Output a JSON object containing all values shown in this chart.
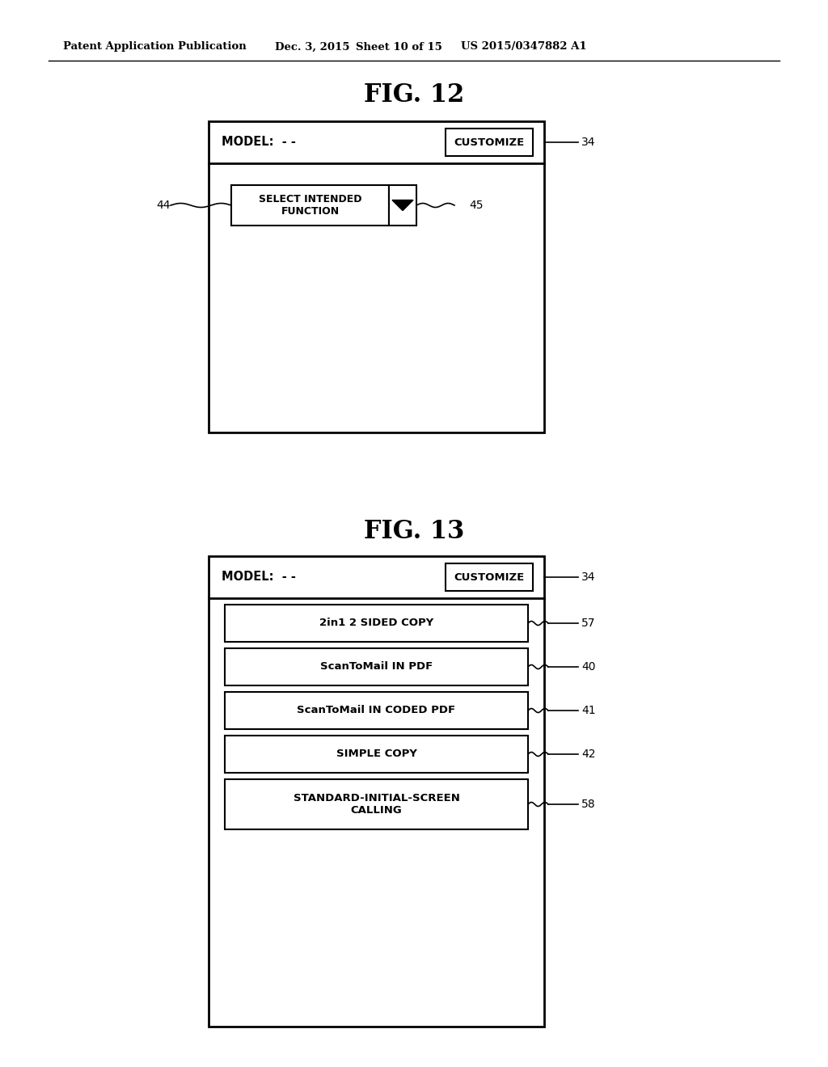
{
  "background_color": "#ffffff",
  "header_text": "Patent Application Publication",
  "header_date": "Dec. 3, 2015",
  "header_sheet": "Sheet 10 of 15",
  "header_patent": "US 2015/0347882 A1",
  "fig12_title": "FIG. 12",
  "fig13_title": "FIG. 13",
  "model_label": "MODEL:  - -",
  "customize_label": "CUSTOMIZE",
  "select_label": "SELECT INTENDED\nFUNCTION",
  "label_34_fig12": "34",
  "label_44": "44",
  "label_45": "45",
  "label_34_fig13": "34",
  "fig13_items": [
    "2in1 2 SIDED COPY",
    "ScanToMail IN PDF",
    "ScanToMail IN CODED PDF",
    "SIMPLE COPY",
    "STANDARD-INITIAL-SCREEN\nCALLING"
  ],
  "fig13_labels": [
    "57",
    "40",
    "41",
    "42",
    "58"
  ]
}
